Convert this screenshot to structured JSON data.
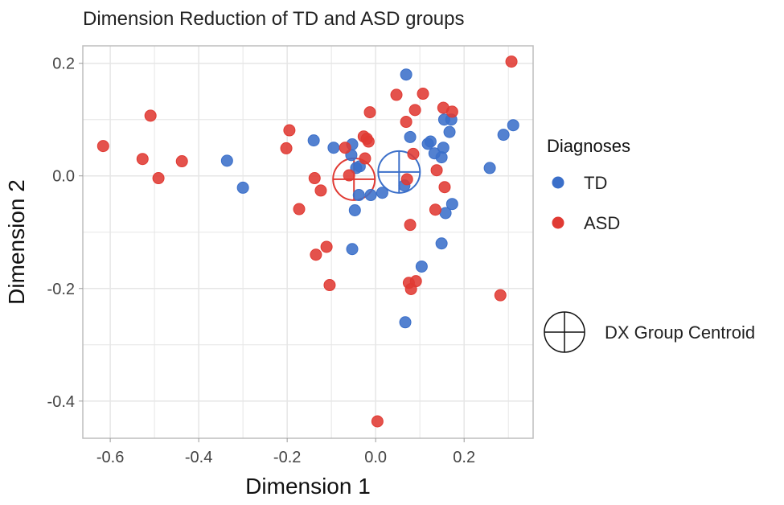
{
  "chart_data": {
    "type": "scatter",
    "title": "Dimension Reduction of TD and ASD groups",
    "xlabel": "Dimension 1",
    "ylabel": "Dimension 2",
    "xlim": [
      -0.662,
      0.356
    ],
    "ylim": [
      -0.466,
      0.231
    ],
    "xticks": [
      -0.6,
      -0.4,
      -0.2,
      0.0,
      0.2
    ],
    "xtick_labels": [
      "-0.6",
      "-0.4",
      "-0.2",
      "0.0",
      "0.2"
    ],
    "yticks": [
      0.2,
      0.0,
      -0.2,
      -0.4
    ],
    "ytick_labels": [
      "0.2",
      "0.0",
      "-0.2",
      "-0.4"
    ],
    "grid": true,
    "legend": {
      "title": "Diagnoses",
      "placement": "right",
      "entries": [
        "TD",
        "ASD"
      ],
      "centroid_label": "DX Group Centroid"
    },
    "series": [
      {
        "name": "TD",
        "color": "#3b6fc9",
        "points": [
          [
            -0.336,
            0.027
          ],
          [
            -0.3,
            -0.021
          ],
          [
            -0.14,
            0.063
          ],
          [
            0.069,
            0.18
          ],
          [
            0.078,
            0.069
          ],
          [
            -0.095,
            0.05
          ],
          [
            -0.053,
            0.056
          ],
          [
            -0.055,
            0.037
          ],
          [
            -0.044,
            0.014
          ],
          [
            -0.036,
            0.017
          ],
          [
            0.065,
            -0.017
          ],
          [
            -0.038,
            -0.034
          ],
          [
            -0.011,
            -0.034
          ],
          [
            0.015,
            -0.03
          ],
          [
            -0.047,
            -0.061
          ],
          [
            0.155,
            0.1
          ],
          [
            0.171,
            0.1
          ],
          [
            0.167,
            0.078
          ],
          [
            0.311,
            0.09
          ],
          [
            0.289,
            0.073
          ],
          [
            0.124,
            0.061
          ],
          [
            0.118,
            0.057
          ],
          [
            0.133,
            0.04
          ],
          [
            0.153,
            0.05
          ],
          [
            0.149,
            0.033
          ],
          [
            0.258,
            0.014
          ],
          [
            0.173,
            -0.05
          ],
          [
            0.158,
            -0.066
          ],
          [
            0.149,
            -0.12
          ],
          [
            -0.053,
            -0.13
          ],
          [
            0.104,
            -0.161
          ],
          [
            0.067,
            -0.26
          ]
        ],
        "centroid": [
          0.053,
          0.007
        ]
      },
      {
        "name": "ASD",
        "color": "#e03a33",
        "points": [
          [
            -0.616,
            0.053
          ],
          [
            -0.509,
            0.107
          ],
          [
            -0.527,
            0.03
          ],
          [
            -0.491,
            -0.004
          ],
          [
            -0.438,
            0.026
          ],
          [
            -0.195,
            0.081
          ],
          [
            -0.202,
            0.049
          ],
          [
            -0.138,
            -0.004
          ],
          [
            -0.124,
            -0.026
          ],
          [
            -0.173,
            -0.059
          ],
          [
            -0.135,
            -0.14
          ],
          [
            -0.111,
            -0.126
          ],
          [
            -0.104,
            -0.194
          ],
          [
            0.047,
            0.144
          ],
          [
            0.107,
            0.146
          ],
          [
            0.089,
            0.117
          ],
          [
            -0.013,
            0.113
          ],
          [
            0.069,
            0.096
          ],
          [
            -0.027,
            0.07
          ],
          [
            -0.016,
            0.061
          ],
          [
            -0.02,
            0.066
          ],
          [
            -0.069,
            0.05
          ],
          [
            -0.024,
            0.031
          ],
          [
            0.085,
            0.039
          ],
          [
            -0.06,
            0.001
          ],
          [
            0.071,
            -0.006
          ],
          [
            0.307,
            0.203
          ],
          [
            0.153,
            0.121
          ],
          [
            0.173,
            0.114
          ],
          [
            0.138,
            0.01
          ],
          [
            0.156,
            -0.02
          ],
          [
            0.135,
            -0.06
          ],
          [
            0.078,
            -0.087
          ],
          [
            0.075,
            -0.19
          ],
          [
            0.091,
            -0.187
          ],
          [
            0.08,
            -0.201
          ],
          [
            0.282,
            -0.212
          ],
          [
            0.004,
            -0.436
          ]
        ],
        "centroid": [
          -0.049,
          -0.006
        ]
      }
    ]
  }
}
